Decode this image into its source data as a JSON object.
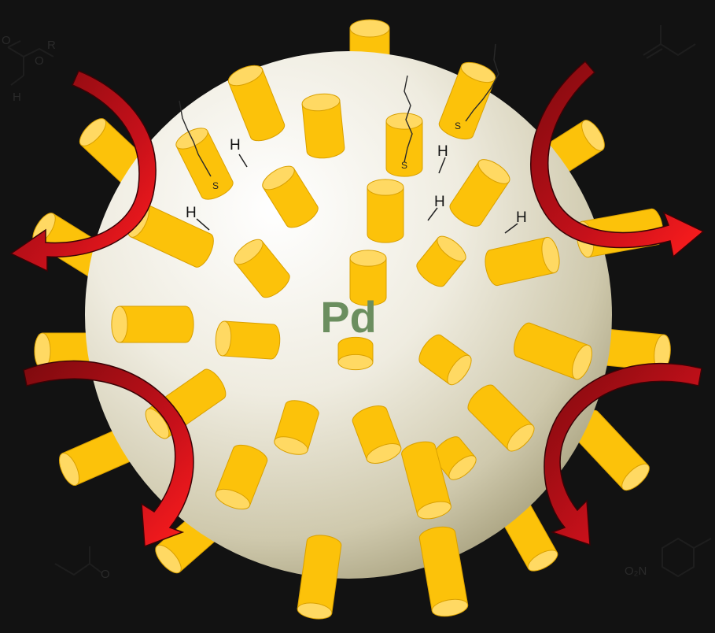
{
  "diagram": {
    "core_label": "Pd",
    "surface_hydrogen_label": "H",
    "sulfur_label": "S",
    "molecule_labels": {
      "ester_r": "R",
      "ester_o1": "O",
      "ester_o2": "O",
      "ester_h": "H",
      "ketone_o": "O",
      "nitro_group": "O₂N"
    },
    "colors": {
      "background": "#121212",
      "sphere_light": "#ffffff",
      "sphere_dark": "#a9a27f",
      "ligand_body": "#fcc20a",
      "ligand_cap": "#ffd963",
      "ligand_outline": "#d9a000",
      "arrow_dark": "#8a0a10",
      "arrow_bright": "#ff1a1a",
      "core_label": "#6b8e5f",
      "molecule_line": "#1e1e1e"
    }
  }
}
